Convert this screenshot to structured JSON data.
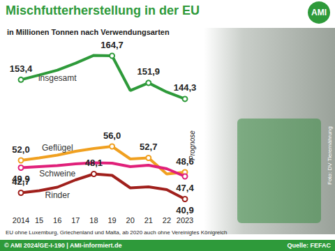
{
  "title": "Mischfutterherstellung in der EU",
  "subtitle": "in Millionen Tonnen nach Verwendungsarten",
  "logo": "AMI",
  "annotation": "Prognose",
  "note": "EU ohne Luxemburg, Griechenland und Malta, ab 2020 auch ohne Vereinigtes Königreich",
  "copyright": "© AMI 2024/GE-I-190 | AMI-informiert.de",
  "source": "Quelle: FEFAC",
  "photo_credit": "Foto: DV Tierernährung",
  "chart_data": [
    {
      "type": "line",
      "categories": [
        "2014",
        "15",
        "16",
        "17",
        "18",
        "19",
        "20",
        "21",
        "22",
        "2023"
      ],
      "ylim": [
        140,
        168
      ],
      "grid": false,
      "tick_labels": false,
      "data_labels": true,
      "marker": "circle",
      "series": [
        {
          "name": "insgesamt",
          "color": "#2e9a3a",
          "values": [
            153.4,
            155.6,
            157.9,
            161.2,
            164.9,
            164.7,
            148.3,
            151.9,
            147.6,
            144.3
          ],
          "value_labels": [
            "153,4",
            null,
            null,
            null,
            null,
            "164,7",
            null,
            "151,9",
            null,
            "144,3"
          ]
        }
      ]
    },
    {
      "type": "line",
      "categories": [
        "2014",
        "15",
        "16",
        "17",
        "18",
        "19",
        "20",
        "21",
        "22",
        "2023"
      ],
      "ylim": [
        38,
        58
      ],
      "grid": false,
      "tick_labels": "x",
      "data_labels": true,
      "marker": "circle",
      "series": [
        {
          "name": "Geflügel",
          "color": "#f0a020",
          "values": [
            52.0,
            52.7,
            53.5,
            54.6,
            55.4,
            56.0,
            52.4,
            52.7,
            48.1,
            48.6
          ],
          "value_labels": [
            "52,0",
            null,
            null,
            null,
            null,
            "56,0",
            null,
            "52,7",
            null,
            "48,6"
          ]
        },
        {
          "name": "Schweine",
          "color": "#e0207a",
          "values": [
            49.9,
            50.2,
            50.5,
            51.0,
            51.3,
            51.2,
            50.2,
            50.6,
            49.6,
            47.4
          ],
          "value_labels": [
            "49,9",
            null,
            null,
            null,
            null,
            null,
            null,
            null,
            null,
            "47,4"
          ]
        },
        {
          "name": "Rinder",
          "color": "#a0201c",
          "values": [
            42.7,
            43.3,
            44.3,
            46.4,
            48.1,
            47.7,
            44.1,
            44.4,
            43.6,
            40.9
          ],
          "value_labels": [
            "42,7",
            null,
            null,
            null,
            "48,1",
            null,
            null,
            null,
            null,
            "40,9"
          ]
        }
      ]
    }
  ]
}
